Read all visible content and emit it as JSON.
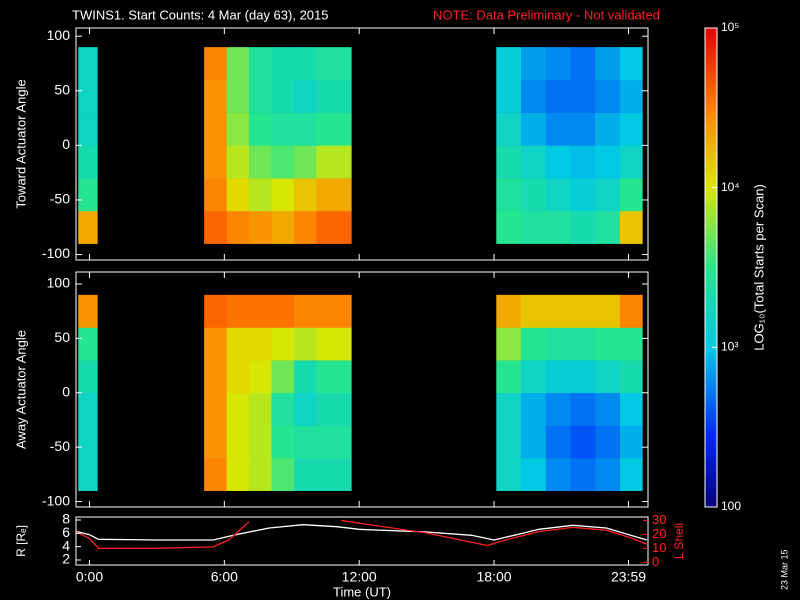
{
  "title": "TWINS1. Start Counts:  4 Mar (day  63), 2015",
  "note": "NOTE: Data Preliminary - Not validated",
  "stamp": "23 Mar 15",
  "chart_data": [
    {
      "type": "heatmap",
      "ylabel": "Toward Actuator Angle",
      "xlim": [
        -0.6,
        24.85
      ],
      "xticks": [
        0,
        6,
        12,
        18,
        23.983
      ],
      "ylim": [
        -105,
        107.5
      ],
      "yticks": [
        -100,
        -50,
        0,
        50,
        100
      ],
      "x_edges": [
        -0.5,
        0.35,
        5.1,
        6.1,
        7.1,
        8.1,
        9.1,
        10.1,
        11.65,
        18.1,
        19.2,
        20.3,
        21.4,
        22.5,
        23.6,
        24.6
      ],
      "y_edges": [
        -90,
        -60,
        -30,
        0,
        30,
        60,
        90
      ],
      "z": [
        [
          20000,
          null,
          40000,
          30000,
          25000,
          20000,
          30000,
          40000,
          null,
          3000,
          2500,
          2500,
          2000,
          2500,
          15000
        ],
        [
          3000,
          null,
          30000,
          12000,
          8000,
          10000,
          15000,
          20000,
          null,
          2500,
          2000,
          1500,
          1200,
          1500,
          3000
        ],
        [
          2000,
          null,
          25000,
          8000,
          5000,
          4000,
          5000,
          8000,
          null,
          2000,
          1500,
          1000,
          900,
          1000,
          1500
        ],
        [
          1500,
          null,
          25000,
          6000,
          3000,
          2500,
          2500,
          3000,
          null,
          1500,
          800,
          600,
          600,
          800,
          1000
        ],
        [
          1500,
          null,
          25000,
          5000,
          2500,
          2000,
          1500,
          2000,
          null,
          1200,
          600,
          500,
          500,
          600,
          800
        ],
        [
          1500,
          null,
          30000,
          5000,
          2500,
          2000,
          2000,
          2500,
          null,
          1200,
          700,
          600,
          500,
          700,
          1000
        ]
      ]
    },
    {
      "type": "heatmap",
      "ylabel": "Away Actuator Angle",
      "xlim": [
        -0.6,
        24.85
      ],
      "xticks": [
        0,
        6,
        12,
        18,
        23.983
      ],
      "ylim": [
        -105,
        111
      ],
      "yticks": [
        -100,
        -50,
        0,
        50,
        100
      ],
      "x_edges": [
        -0.5,
        0.35,
        5.1,
        6.1,
        7.1,
        8.1,
        9.1,
        10.1,
        11.65,
        18.1,
        19.2,
        20.3,
        21.4,
        22.5,
        23.6,
        24.6
      ],
      "y_edges": [
        -90,
        -60,
        -30,
        0,
        30,
        60,
        90
      ],
      "z": [
        [
          1500,
          null,
          30000,
          10000,
          8000,
          4000,
          2000,
          2000,
          null,
          1500,
          1000,
          600,
          500,
          600,
          1000
        ],
        [
          1500,
          null,
          25000,
          10000,
          8000,
          3000,
          2500,
          2500,
          null,
          1500,
          800,
          500,
          400,
          500,
          800
        ],
        [
          1500,
          null,
          25000,
          10000,
          8000,
          2500,
          1500,
          2000,
          null,
          1500,
          800,
          600,
          500,
          600,
          1000
        ],
        [
          2000,
          null,
          25000,
          12000,
          10000,
          5000,
          2000,
          3000,
          null,
          3000,
          1500,
          1200,
          1200,
          1500,
          2000
        ],
        [
          3000,
          null,
          25000,
          12000,
          12000,
          10000,
          8000,
          10000,
          null,
          6000,
          3000,
          2500,
          2500,
          3000,
          3000
        ],
        [
          25000,
          null,
          40000,
          35000,
          35000,
          35000,
          30000,
          30000,
          null,
          20000,
          15000,
          15000,
          15000,
          15000,
          30000
        ]
      ]
    },
    {
      "type": "colorbar",
      "label": "LOG₁₀(Total Starts per Scan)",
      "log": true,
      "zlim": [
        100,
        100000
      ],
      "zticks": [
        100,
        {
          "value": 1000,
          "label": "10³"
        },
        {
          "value": 10000,
          "label": "10⁴"
        },
        {
          "value": 100000,
          "label": "10⁵"
        }
      ]
    },
    {
      "type": "line",
      "xlabel": "Time (UT)",
      "ylabel": "R [Rₑ]",
      "y2label": "L Shell",
      "xlim": [
        -0.6,
        24.85
      ],
      "xticks": [
        {
          "value": 0,
          "label": "0:00"
        },
        {
          "value": 6,
          "label": "6:00"
        },
        {
          "value": 12,
          "label": "12:00"
        },
        {
          "value": 18,
          "label": "18:00"
        },
        {
          "value": 23.983,
          "label": "23:59"
        }
      ],
      "ylim": [
        1.25,
        8.45
      ],
      "yticks": [
        2,
        4,
        6,
        8
      ],
      "y2lim": [
        -1.9,
        32.4
      ],
      "y2ticks": [
        0,
        10,
        20,
        30
      ],
      "y2color": "#ff2020",
      "series": [
        {
          "name": "R",
          "color": "#ffffff",
          "x": [
            -0.6,
            0,
            0.4,
            3,
            5.5,
            6.5,
            8,
            9.5,
            11,
            12,
            15,
            17,
            18,
            19,
            20,
            21.5,
            23,
            24,
            24.8
          ],
          "values": [
            6.3,
            5.8,
            5.1,
            5,
            5,
            5.8,
            6.8,
            7.3,
            7.0,
            6.6,
            6.2,
            5.7,
            5.0,
            5.8,
            6.6,
            7.2,
            6.8,
            5.8,
            5.0
          ]
        },
        {
          "name": "L Shell",
          "color": "#ff2020",
          "axis": "y2",
          "x": [
            -0.6,
            0,
            0.4,
            3,
            5.5,
            6.2,
            7.1,
            7.3,
            10.9,
            11.2,
            12,
            15,
            17.7,
            18.5,
            20,
            21.5,
            23,
            24,
            24.8
          ],
          "values": [
            22,
            17,
            10,
            10,
            11,
            16,
            29,
            null,
            null,
            30,
            28,
            21,
            12,
            16,
            22,
            25,
            23,
            18,
            13
          ]
        }
      ]
    }
  ]
}
